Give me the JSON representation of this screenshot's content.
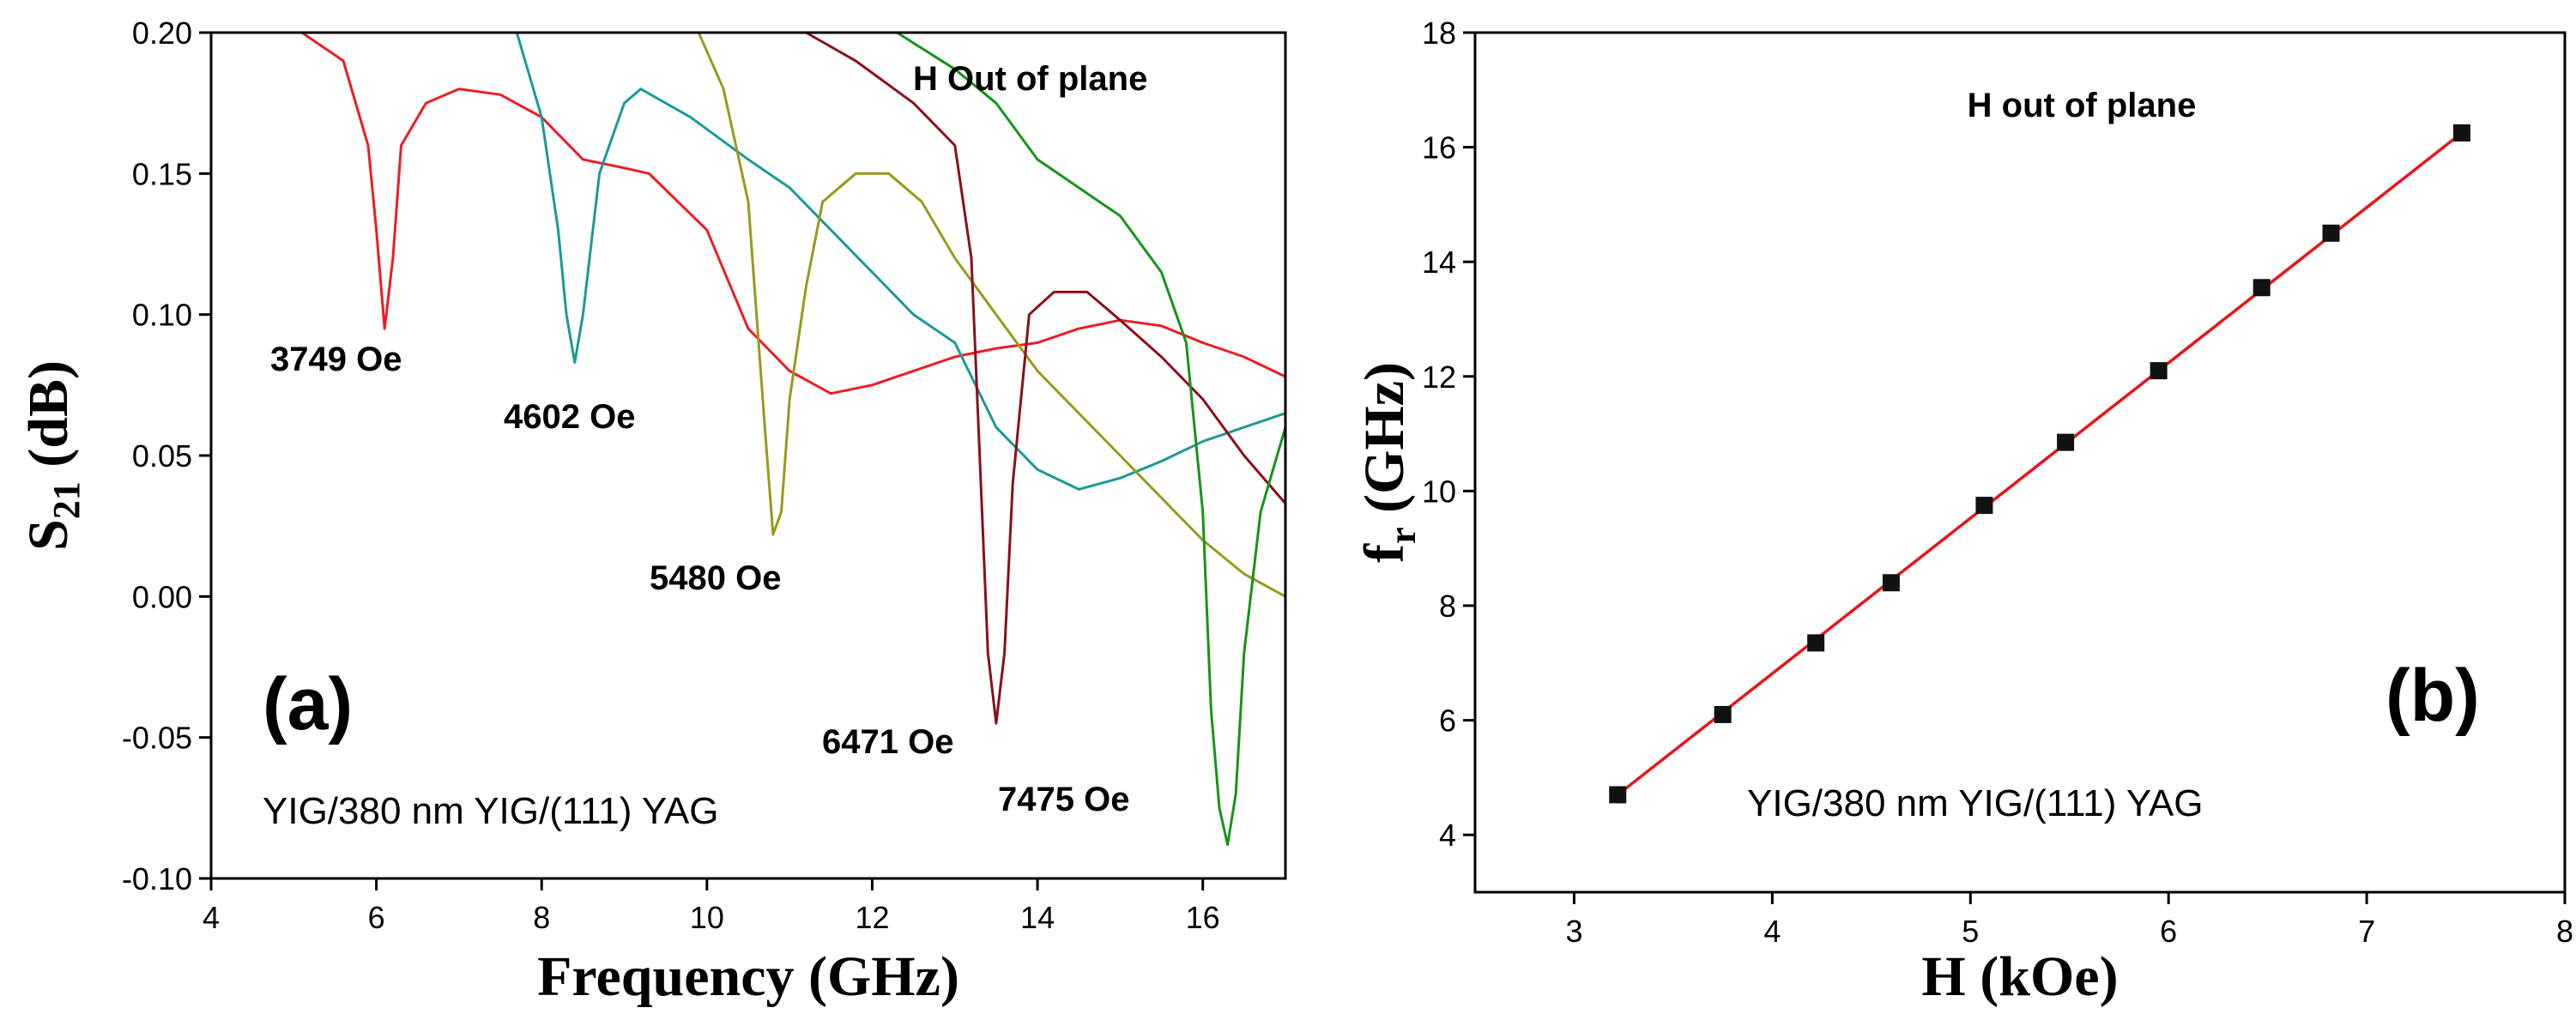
{
  "chart_data": [
    {
      "type": "line",
      "panel_label": "(a)",
      "annotation": "H Out of plane",
      "sample_label": "YIG/380 nm YIG/(111)  YAG",
      "xlabel": "Frequency (GHz)",
      "ylabel": {
        "main": "S",
        "sub": "21",
        "rest": " (dB)"
      },
      "xlim": [
        4,
        17
      ],
      "ylim": [
        -0.1,
        0.2
      ],
      "x_ticks": [
        "4",
        "6",
        "8",
        "10",
        "12",
        "14",
        "16"
      ],
      "y_ticks": [
        "-0.10",
        "-0.05",
        "0.00",
        "0.05",
        "0.10",
        "0.15",
        "0.20"
      ],
      "series": [
        {
          "name": "3749 Oe",
          "color": "#ed1c24",
          "x": [
            5.1,
            5.6,
            5.9,
            6.0,
            6.1,
            6.2,
            6.3,
            6.6,
            7.0,
            7.5,
            8.0,
            8.5,
            9.0,
            9.3,
            10.0,
            10.5,
            11.0,
            11.5,
            12.0,
            12.5,
            13.0,
            13.5,
            14.0,
            14.5,
            15.0,
            15.5,
            16.0,
            16.5,
            17.0
          ],
          "y": [
            0.2,
            0.19,
            0.16,
            0.13,
            0.095,
            0.12,
            0.16,
            0.175,
            0.18,
            0.178,
            0.17,
            0.155,
            0.152,
            0.15,
            0.13,
            0.095,
            0.08,
            0.072,
            0.075,
            0.08,
            0.085,
            0.088,
            0.09,
            0.095,
            0.098,
            0.096,
            0.09,
            0.085,
            0.078
          ]
        },
        {
          "name": "4602 Oe",
          "color": "#1a9a9a",
          "x": [
            6.4,
            7.0,
            7.7,
            8.0,
            8.2,
            8.3,
            8.4,
            8.5,
            8.7,
            9.0,
            9.2,
            9.8,
            10.5,
            11.0,
            11.5,
            12.0,
            12.5,
            13.0,
            13.5,
            14.0,
            14.5,
            15.0,
            15.5,
            16.0,
            16.5,
            17.0
          ],
          "y": [
            0.2,
            0.2,
            0.2,
            0.17,
            0.13,
            0.1,
            0.083,
            0.1,
            0.15,
            0.175,
            0.18,
            0.17,
            0.155,
            0.145,
            0.13,
            0.115,
            0.1,
            0.09,
            0.06,
            0.045,
            0.038,
            0.042,
            0.048,
            0.055,
            0.06,
            0.065
          ]
        },
        {
          "name": "5480 Oe",
          "color": "#999a1a",
          "x": [
            9.9,
            10.2,
            10.5,
            10.7,
            10.8,
            10.9,
            11.0,
            11.2,
            11.4,
            11.8,
            12.2,
            12.6,
            13.0,
            13.5,
            14.0,
            14.5,
            15.0,
            15.5,
            16.0,
            16.5,
            17.0
          ],
          "y": [
            0.2,
            0.18,
            0.14,
            0.06,
            0.022,
            0.03,
            0.07,
            0.11,
            0.14,
            0.15,
            0.15,
            0.14,
            0.12,
            0.1,
            0.08,
            0.065,
            0.05,
            0.035,
            0.02,
            0.008,
            0.0
          ]
        },
        {
          "name": "6471 Oe",
          "color": "#8b0f1c",
          "x": [
            11.2,
            11.8,
            12.5,
            13.0,
            13.2,
            13.3,
            13.4,
            13.5,
            13.6,
            13.7,
            13.9,
            14.2,
            14.6,
            15.0,
            15.5,
            16.0,
            16.5,
            17.0
          ],
          "y": [
            0.2,
            0.19,
            0.175,
            0.16,
            0.12,
            0.05,
            -0.02,
            -0.045,
            -0.02,
            0.04,
            0.1,
            0.108,
            0.108,
            0.098,
            0.085,
            0.07,
            0.05,
            0.033
          ]
        },
        {
          "name": "7475 Oe",
          "color": "#169419",
          "x": [
            12.3,
            13.0,
            13.5,
            14.0,
            14.5,
            15.0,
            15.5,
            15.8,
            16.0,
            16.1,
            16.2,
            16.3,
            16.4,
            16.5,
            16.7,
            17.0
          ],
          "y": [
            0.2,
            0.187,
            0.175,
            0.155,
            0.145,
            0.135,
            0.115,
            0.09,
            0.03,
            -0.04,
            -0.075,
            -0.088,
            -0.07,
            -0.02,
            0.03,
            0.06
          ]
        }
      ]
    },
    {
      "type": "scatter",
      "panel_label": "(b)",
      "annotation": "H out of plane",
      "sample_label": "YIG/380 nm YIG/(111)  YAG",
      "xlabel": "H (kOe)",
      "ylabel": {
        "main": "f",
        "sub": "r",
        "rest": " (GHz)"
      },
      "xlim": [
        2.5,
        8
      ],
      "ylim": [
        3,
        18
      ],
      "x_ticks": [
        "3",
        "4",
        "5",
        "6",
        "7",
        "8"
      ],
      "y_ticks": [
        "4",
        "6",
        "8",
        "10",
        "12",
        "14",
        "16",
        "18"
      ],
      "points": {
        "x": [
          3.22,
          3.75,
          4.22,
          4.6,
          5.07,
          5.48,
          5.95,
          6.47,
          6.82,
          7.48
        ],
        "y": [
          4.7,
          6.1,
          7.35,
          8.4,
          9.75,
          10.85,
          12.1,
          13.55,
          14.5,
          16.25
        ]
      },
      "fit": {
        "x": [
          3.22,
          7.48
        ],
        "y": [
          4.7,
          16.25
        ],
        "color": "#e8141b"
      }
    }
  ]
}
